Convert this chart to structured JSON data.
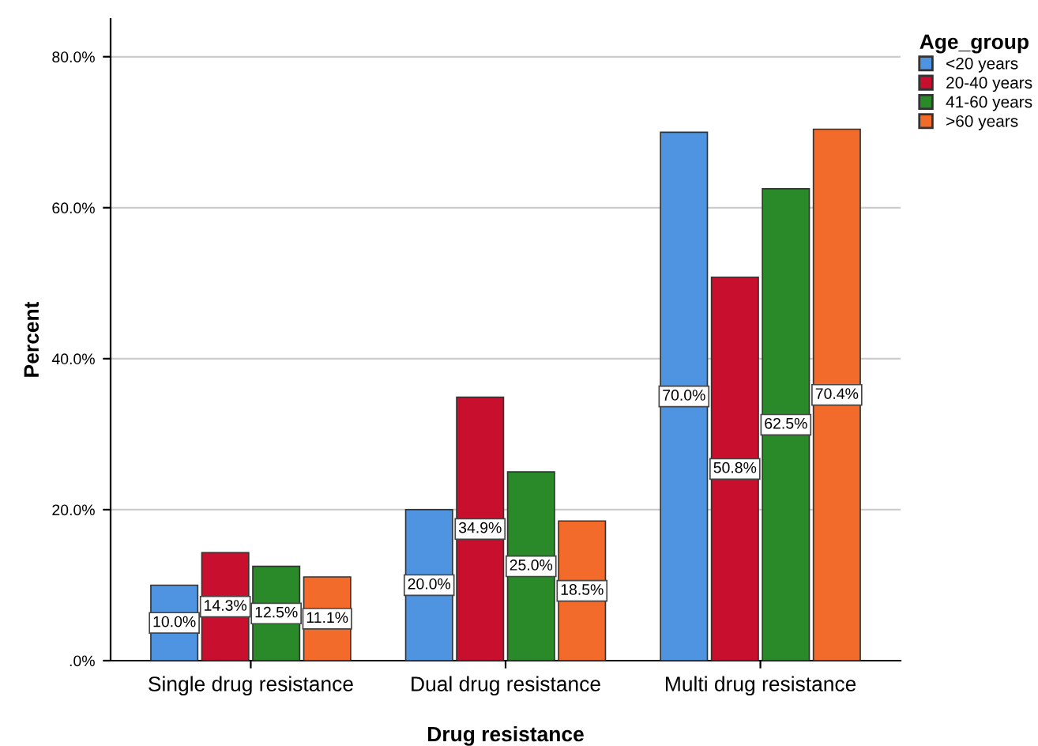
{
  "chart_data": {
    "type": "bar",
    "xlabel": "Drug resistance",
    "ylabel": "Percent",
    "legend_title": "Age_group",
    "categories": [
      "Single drug resistance",
      "Dual drug resistance",
      "Multi drug resistance"
    ],
    "series": [
      {
        "name": "<20 years",
        "color": "#4f94e0",
        "values": [
          10.0,
          20.0,
          70.0
        ],
        "value_labels": [
          "10.0%",
          "20.0%",
          "70.0%"
        ]
      },
      {
        "name": "20-40 years",
        "color": "#c8102e",
        "values": [
          14.3,
          34.9,
          50.8
        ],
        "value_labels": [
          "14.3%",
          "34.9%",
          "50.8%"
        ]
      },
      {
        "name": "41-60 years",
        "color": "#2a8a2a",
        "values": [
          12.5,
          25.0,
          62.5
        ],
        "value_labels": [
          "12.5%",
          "25.0%",
          "62.5%"
        ]
      },
      {
        "name": ">60 years",
        "color": "#f26b2a",
        "values": [
          11.1,
          18.5,
          70.4
        ],
        "value_labels": [
          "11.1%",
          "18.5%",
          "70.4%"
        ]
      }
    ],
    "ylim": [
      0,
      85
    ],
    "yticks": [
      {
        "value": 0,
        "label": ".0%"
      },
      {
        "value": 20,
        "label": "20.0%"
      },
      {
        "value": 40,
        "label": "40.0%"
      },
      {
        "value": 60,
        "label": "60.0%"
      },
      {
        "value": 80,
        "label": "80.0%"
      }
    ],
    "grid": "y",
    "legend": "top right"
  }
}
